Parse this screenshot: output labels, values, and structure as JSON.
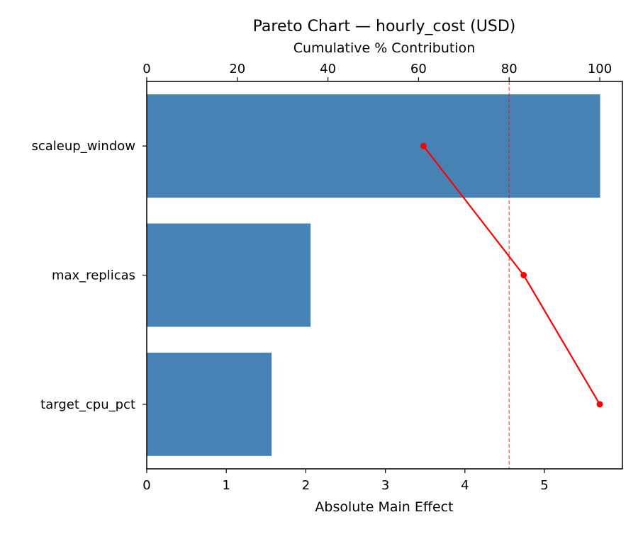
{
  "chart_data": {
    "type": "bar",
    "orientation": "horizontal",
    "title": "Pareto Chart — hourly_cost (USD)",
    "xlabel": "Absolute Main Effect",
    "ylabel": "",
    "secondary_xlabel": "Cumulative % Contribution",
    "categories": [
      "scaleup_window",
      "max_replicas",
      "target_cpu_pct"
    ],
    "values": [
      5.7,
      2.06,
      1.57
    ],
    "cumulative_percent": [
      61.1,
      83.2,
      100.0
    ],
    "threshold_percent": 80,
    "xlim": [
      0,
      5.98
    ],
    "secondary_xlim": [
      0,
      105
    ],
    "xticks": [
      "0",
      "1",
      "2",
      "3",
      "4",
      "5"
    ],
    "secondary_xticks": [
      "0",
      "20",
      "40",
      "60",
      "80",
      "100"
    ],
    "bar_color": "#4682b4",
    "line_color": "#ff0000",
    "threshold_color": "#ff0000",
    "grid": false,
    "legend": null
  }
}
